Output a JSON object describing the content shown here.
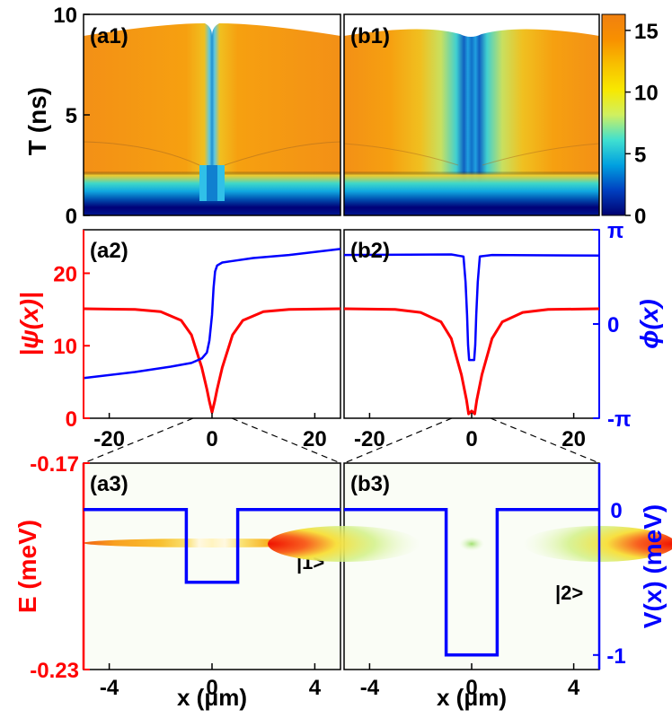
{
  "chart_data": [
    {
      "id": "a1",
      "type": "heatmap",
      "panel_label": "(a1)",
      "ylabel": "T (ns)",
      "ylim": [
        0,
        10
      ],
      "yticks": [
        "0",
        "5",
        "10"
      ],
      "xlim": [
        -25,
        25
      ],
      "zlim": [
        0,
        16
      ]
    },
    {
      "id": "b1",
      "type": "heatmap",
      "panel_label": "(b1)",
      "ylim": [
        0,
        10
      ],
      "xlim": [
        -25,
        25
      ],
      "zlim": [
        0,
        16
      ]
    },
    {
      "id": "colorbar",
      "type": "heatmap",
      "ticks": [
        "0",
        "5",
        "10",
        "15"
      ],
      "range": [
        0,
        16.3
      ],
      "colors": [
        "#000070",
        "#0040c0",
        "#00a0e0",
        "#40e0d0",
        "#d0f060",
        "#f8e800",
        "#f8c000",
        "#f89000",
        "#f08010"
      ]
    },
    {
      "id": "a2",
      "type": "line",
      "panel_label": "(a2)",
      "ylabel_left": "|ψ(x)|",
      "ylabel_right": "ϕ(x)",
      "xlim": [
        -25,
        25
      ],
      "ylim_left": [
        0,
        26
      ],
      "ylim_right": [
        -3.1416,
        3.1416
      ],
      "yticks_left": [
        "0",
        "10",
        "20"
      ],
      "yticks_right": [
        "-π",
        "0",
        "π"
      ],
      "series": [
        {
          "axis": "left",
          "color": "#ff0000",
          "x": [
            -25,
            -15,
            -10,
            -6,
            -4,
            -2,
            -1,
            -0.5,
            0,
            0.5,
            1,
            2,
            4,
            6,
            10,
            15,
            25
          ],
          "values": [
            15.1,
            15.0,
            14.7,
            13.5,
            11.5,
            7.0,
            4.0,
            2.3,
            0.8,
            2.3,
            4.0,
            7.0,
            11.5,
            13.5,
            14.7,
            15.0,
            15.1
          ]
        },
        {
          "axis": "right",
          "color": "#0000ff",
          "x": [
            -25,
            -15,
            -8,
            -4,
            -2,
            -1,
            -0.5,
            0,
            0.3,
            0.6,
            1,
            2,
            4,
            8,
            15,
            25
          ],
          "values": [
            -1.8,
            -1.6,
            -1.42,
            -1.3,
            -1.15,
            -0.95,
            -0.55,
            0.3,
            1.2,
            1.75,
            1.95,
            2.05,
            2.1,
            2.2,
            2.3,
            2.5
          ]
        }
      ]
    },
    {
      "id": "b2",
      "type": "line",
      "panel_label": "(b2)",
      "xlim": [
        -25,
        25
      ],
      "ylim_left": [
        0,
        26
      ],
      "ylim_right": [
        -3.1416,
        3.1416
      ],
      "xticks": [
        "-20",
        "0",
        "20"
      ],
      "series": [
        {
          "axis": "left",
          "color": "#ff0000",
          "x": [
            -25,
            -15,
            -10,
            -6,
            -4,
            -2,
            -1,
            -0.6,
            0,
            0.6,
            1,
            2,
            4,
            6,
            10,
            15,
            25
          ],
          "values": [
            15.1,
            15.0,
            14.6,
            13.3,
            11.0,
            6.0,
            2.5,
            0.6,
            1.0,
            0.6,
            2.5,
            6.0,
            11.0,
            13.3,
            14.6,
            15.0,
            15.1
          ]
        },
        {
          "axis": "right",
          "color": "#0000ff",
          "x": [
            -25,
            -4,
            -1.6,
            -1.2,
            -0.9,
            -0.7,
            -0.5,
            0,
            0.5,
            0.7,
            0.9,
            1.2,
            1.6,
            4,
            25
          ],
          "values": [
            2.3,
            2.32,
            2.25,
            1.4,
            0.3,
            -0.7,
            -1.2,
            -1.2,
            -1.2,
            -0.7,
            0.3,
            1.4,
            2.25,
            2.3,
            2.28
          ]
        }
      ]
    },
    {
      "id": "a3",
      "type": "heatmap",
      "panel_label": "(a3)",
      "state_label": "|1>",
      "ylabel": "E (meV)",
      "yticks": [
        "-0.23",
        "-0.17"
      ],
      "ylim": [
        -0.23,
        -0.17
      ],
      "xlim": [
        -5,
        5
      ],
      "xticks": [
        "-4",
        "0",
        "4"
      ],
      "xlabel": "x (μm)",
      "potential": {
        "x": [
          -5,
          -1,
          -1,
          1,
          1,
          5
        ],
        "V": [
          0,
          0,
          -0.5,
          -0.5,
          0,
          0
        ],
        "color": "#0000ff"
      },
      "band_energy": -0.1953
    },
    {
      "id": "b3",
      "type": "heatmap",
      "panel_label": "(b3)",
      "state_label": "|2>",
      "ylabel_right": "V(x) (meV)",
      "yticks_right": [
        "-1",
        "0"
      ],
      "vlim": [
        -1.1,
        0.32
      ],
      "xlim": [
        -5,
        5
      ],
      "xticks": [
        "-4",
        "0",
        "4"
      ],
      "xlabel": "x (μm)",
      "potential": {
        "x": [
          -5,
          -1,
          -1,
          1,
          1,
          5
        ],
        "V": [
          0,
          0,
          -1,
          -1,
          0,
          0
        ],
        "color": "#0000ff"
      },
      "band_energy": -0.1953
    }
  ]
}
